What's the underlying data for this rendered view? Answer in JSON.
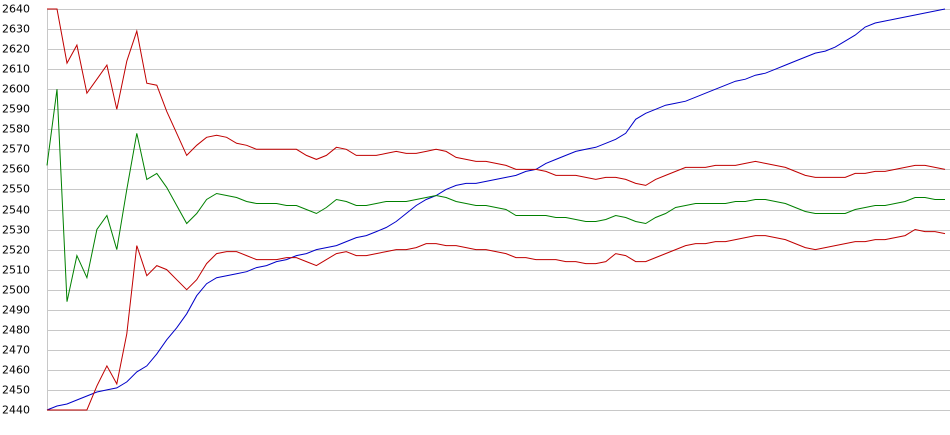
{
  "chart_data": {
    "type": "line",
    "ylim": [
      2440,
      2640
    ],
    "yticks": [
      2440,
      2450,
      2460,
      2470,
      2480,
      2490,
      2500,
      2510,
      2520,
      2530,
      2540,
      2550,
      2560,
      2570,
      2580,
      2590,
      2600,
      2610,
      2620,
      2630,
      2640
    ],
    "grid": true,
    "series": [
      {
        "color": "#0000c8",
        "values": [
          2440,
          2442,
          2443,
          2445,
          2447,
          2449,
          2450,
          2451,
          2454,
          2459,
          2462,
          2468,
          2475,
          2481,
          2488,
          2497,
          2503,
          2506,
          2507,
          2508,
          2509,
          2511,
          2512,
          2514,
          2515,
          2517,
          2518,
          2520,
          2521,
          2522,
          2524,
          2526,
          2527,
          2529,
          2531,
          2534,
          2538,
          2542,
          2545,
          2547,
          2550,
          2552,
          2553,
          2553,
          2554,
          2555,
          2556,
          2557,
          2559,
          2560,
          2563,
          2565,
          2567,
          2569,
          2570,
          2571,
          2573,
          2575,
          2578,
          2585,
          2588,
          2590,
          2592,
          2593,
          2594,
          2596,
          2598,
          2600,
          2602,
          2604,
          2605,
          2607,
          2608,
          2610,
          2612,
          2614,
          2616,
          2618,
          2619,
          2621,
          2624,
          2627,
          2631,
          2633,
          2634,
          2635,
          2636,
          2637,
          2638,
          2639,
          2640
        ]
      },
      {
        "color": "#c00000",
        "values": [
          2640,
          2640,
          2613,
          2622,
          2598,
          2605,
          2612,
          2590,
          2614,
          2629,
          2603,
          2602,
          2589,
          2578,
          2567,
          2572,
          2576,
          2577,
          2576,
          2573,
          2572,
          2570,
          2570,
          2570,
          2570,
          2570,
          2567,
          2565,
          2567,
          2571,
          2570,
          2567,
          2567,
          2567,
          2568,
          2569,
          2568,
          2568,
          2569,
          2570,
          2569,
          2566,
          2565,
          2564,
          2564,
          2563,
          2562,
          2560,
          2560,
          2560,
          2559,
          2557,
          2557,
          2557,
          2556,
          2555,
          2556,
          2556,
          2555,
          2553,
          2552,
          2555,
          2557,
          2559,
          2561,
          2561,
          2561,
          2562,
          2562,
          2562,
          2563,
          2564,
          2563,
          2562,
          2561,
          2559,
          2557,
          2556,
          2556,
          2556,
          2556,
          2558,
          2558,
          2559,
          2559,
          2560,
          2561,
          2562,
          2562,
          2561,
          2560
        ]
      },
      {
        "color": "#c00000",
        "values": [
          2440,
          2440,
          2440,
          2440,
          2440,
          2452,
          2462,
          2453,
          2478,
          2522,
          2507,
          2512,
          2510,
          2505,
          2500,
          2505,
          2513,
          2518,
          2519,
          2519,
          2517,
          2515,
          2515,
          2515,
          2516,
          2516,
          2514,
          2512,
          2515,
          2518,
          2519,
          2517,
          2517,
          2518,
          2519,
          2520,
          2520,
          2521,
          2523,
          2523,
          2522,
          2522,
          2521,
          2520,
          2520,
          2519,
          2518,
          2516,
          2516,
          2515,
          2515,
          2515,
          2514,
          2514,
          2513,
          2513,
          2514,
          2518,
          2517,
          2514,
          2514,
          2516,
          2518,
          2520,
          2522,
          2523,
          2523,
          2524,
          2524,
          2525,
          2526,
          2527,
          2527,
          2526,
          2525,
          2523,
          2521,
          2520,
          2521,
          2522,
          2523,
          2524,
          2524,
          2525,
          2525,
          2526,
          2527,
          2530,
          2529,
          2529,
          2528
        ]
      },
      {
        "color": "#008000",
        "values": [
          2562,
          2600,
          2494,
          2517,
          2506,
          2530,
          2537,
          2520,
          2550,
          2578,
          2555,
          2558,
          2551,
          2542,
          2533,
          2538,
          2545,
          2548,
          2547,
          2546,
          2544,
          2543,
          2543,
          2543,
          2542,
          2542,
          2540,
          2538,
          2541,
          2545,
          2544,
          2542,
          2542,
          2543,
          2544,
          2544,
          2544,
          2545,
          2546,
          2547,
          2546,
          2544,
          2543,
          2542,
          2542,
          2541,
          2540,
          2537,
          2537,
          2537,
          2537,
          2536,
          2536,
          2535,
          2534,
          2534,
          2535,
          2537,
          2536,
          2534,
          2533,
          2536,
          2538,
          2541,
          2542,
          2543,
          2543,
          2543,
          2543,
          2544,
          2544,
          2545,
          2545,
          2544,
          2543,
          2541,
          2539,
          2538,
          2538,
          2538,
          2538,
          2540,
          2541,
          2542,
          2542,
          2543,
          2544,
          2546,
          2546,
          2545,
          2545
        ]
      }
    ]
  }
}
